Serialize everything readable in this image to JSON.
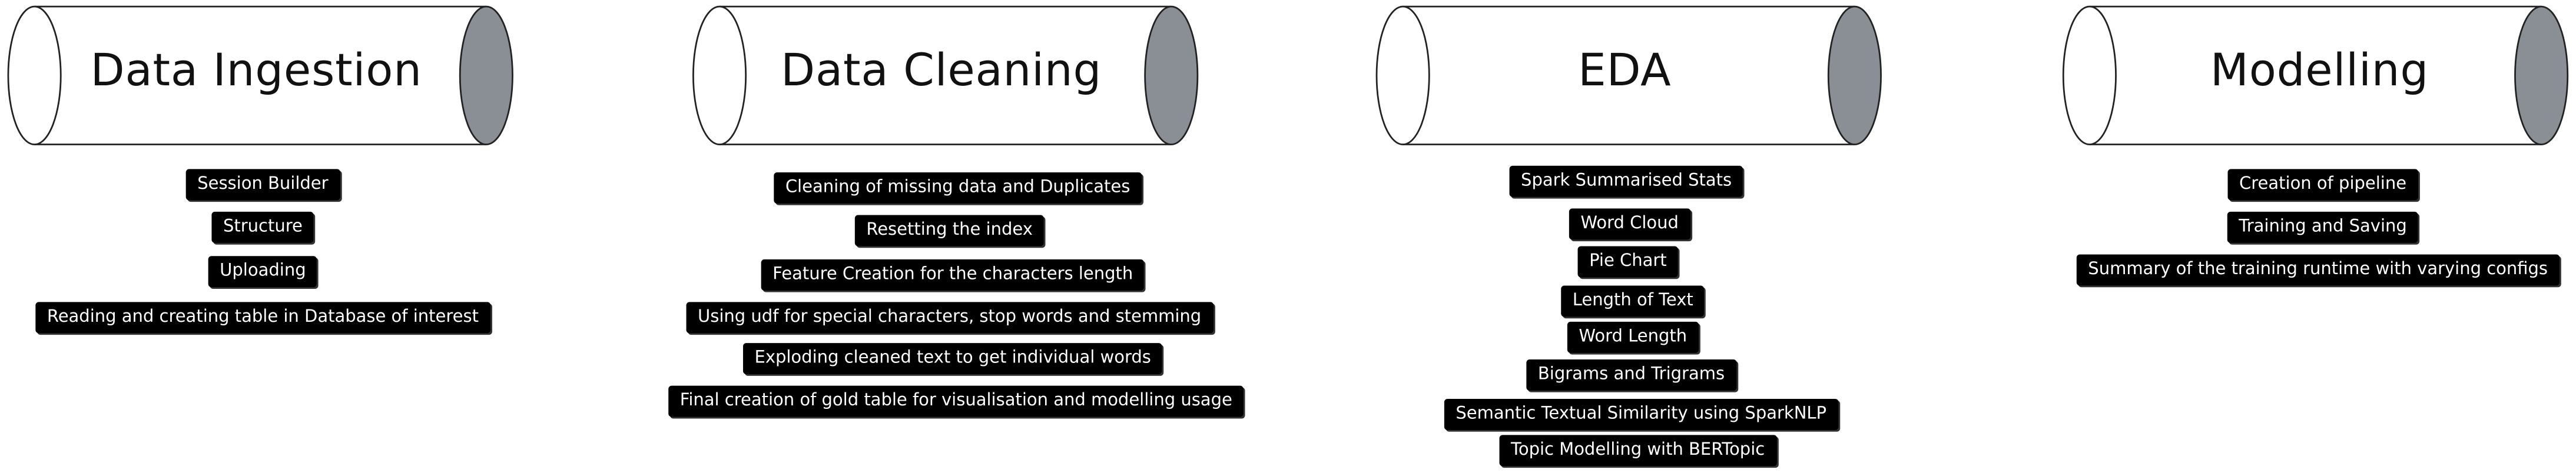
{
  "stages": [
    {
      "title": "Data Ingestion",
      "items": [
        "Session Builder",
        "Structure",
        "Uploading",
        "Reading and creating table in Database of interest"
      ]
    },
    {
      "title": "Data Cleaning",
      "items": [
        "Cleaning of missing data and Duplicates",
        "Resetting the index",
        "Feature Creation for the characters length",
        "Using udf for special characters, stop words and stemming",
        "Exploding cleaned text to get individual words",
        "Final creation of gold table for visualisation and modelling usage"
      ]
    },
    {
      "title": "EDA",
      "items": [
        "Spark Summarised Stats",
        "Word Cloud",
        "Pie Chart",
        "Length of Text",
        "Word Length",
        "Bigrams and Trigrams",
        "Semantic Textual Similarity using SparkNLP",
        "Topic Modelling with BERTopic"
      ]
    },
    {
      "title": "Modelling",
      "items": [
        "Creation of pipeline",
        "Training and Saving",
        "Summary of the training runtime with varying configs"
      ]
    }
  ],
  "colors": {
    "pill_background": "#000000",
    "pill_text": "#ffffff",
    "cylinder_cap": "#8a8f96",
    "outline": "#222222"
  }
}
